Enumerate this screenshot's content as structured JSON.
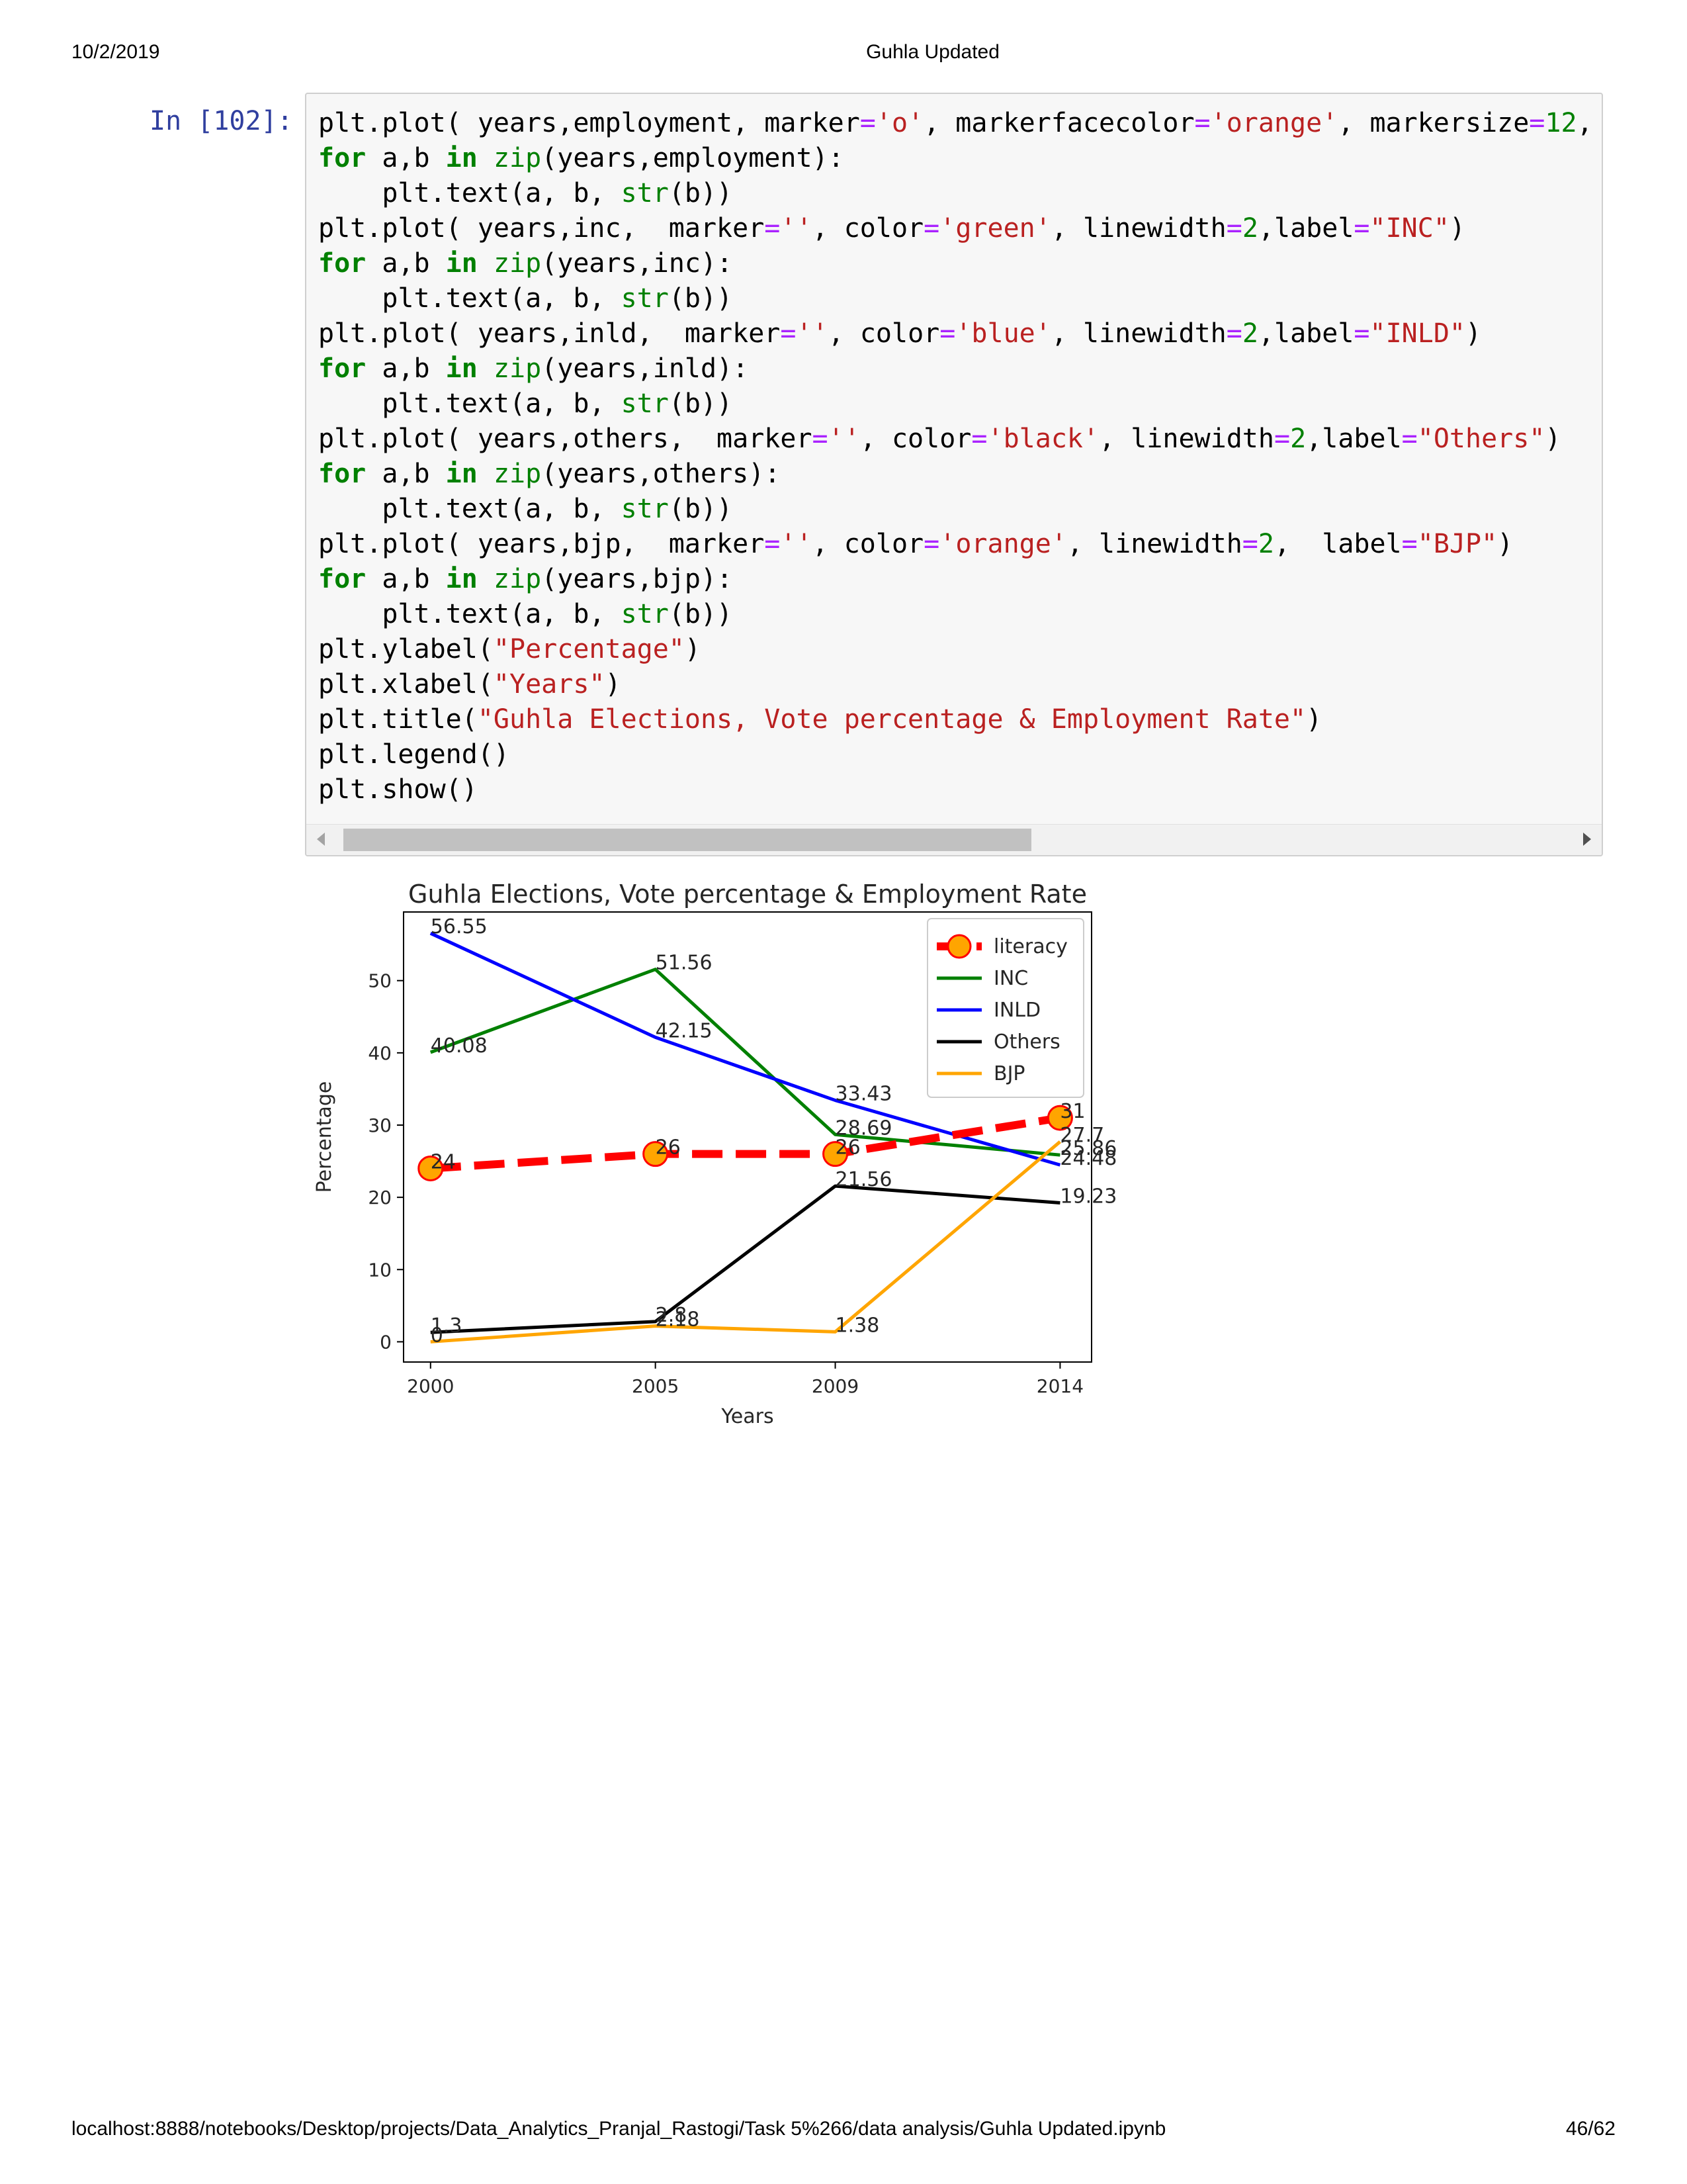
{
  "page": {
    "date": "10/2/2019",
    "title": "Guhla Updated",
    "url": "localhost:8888/notebooks/Desktop/projects/Data_Analytics_Pranjal_Rastogi/Task 5%266/data analysis/Guhla Updated.ipynb",
    "page_number": "46/62"
  },
  "cell": {
    "prompt": "In [102]:",
    "lines": [
      [
        [
          "plt.plot( years,employment, marker",
          ""
        ],
        [
          "=",
          "op"
        ],
        [
          "'o'",
          "st"
        ],
        [
          ", markerfacecolor",
          ""
        ],
        [
          "=",
          "op"
        ],
        [
          "'orange'",
          "st"
        ],
        [
          ", markersize",
          ""
        ],
        [
          "=",
          "op"
        ],
        [
          "12",
          "nm"
        ],
        [
          ",",
          ""
        ]
      ],
      [
        [
          "for",
          "kw"
        ],
        [
          " a,b ",
          ""
        ],
        [
          "in",
          "kw"
        ],
        [
          " ",
          ""
        ],
        [
          "zip",
          "bi"
        ],
        [
          "(years,employment):",
          ""
        ]
      ],
      [
        [
          "    plt.text(a, b, ",
          ""
        ],
        [
          "str",
          "bi"
        ],
        [
          "(b))",
          ""
        ]
      ],
      [
        [
          "plt.plot( years,inc,  marker",
          ""
        ],
        [
          "=",
          "op"
        ],
        [
          "''",
          "st"
        ],
        [
          ", color",
          ""
        ],
        [
          "=",
          "op"
        ],
        [
          "'green'",
          "st"
        ],
        [
          ", linewidth",
          ""
        ],
        [
          "=",
          "op"
        ],
        [
          "2",
          "nm"
        ],
        [
          ",label",
          ""
        ],
        [
          "=",
          "op"
        ],
        [
          "\"INC\"",
          "st"
        ],
        [
          ")",
          ""
        ]
      ],
      [
        [
          "for",
          "kw"
        ],
        [
          " a,b ",
          ""
        ],
        [
          "in",
          "kw"
        ],
        [
          " ",
          ""
        ],
        [
          "zip",
          "bi"
        ],
        [
          "(years,inc):",
          ""
        ]
      ],
      [
        [
          "    plt.text(a, b, ",
          ""
        ],
        [
          "str",
          "bi"
        ],
        [
          "(b))",
          ""
        ]
      ],
      [
        [
          "plt.plot( years,inld,  marker",
          ""
        ],
        [
          "=",
          "op"
        ],
        [
          "''",
          "st"
        ],
        [
          ", color",
          ""
        ],
        [
          "=",
          "op"
        ],
        [
          "'blue'",
          "st"
        ],
        [
          ", linewidth",
          ""
        ],
        [
          "=",
          "op"
        ],
        [
          "2",
          "nm"
        ],
        [
          ",label",
          ""
        ],
        [
          "=",
          "op"
        ],
        [
          "\"INLD\"",
          "st"
        ],
        [
          ")",
          ""
        ]
      ],
      [
        [
          "for",
          "kw"
        ],
        [
          " a,b ",
          ""
        ],
        [
          "in",
          "kw"
        ],
        [
          " ",
          ""
        ],
        [
          "zip",
          "bi"
        ],
        [
          "(years,inld):",
          ""
        ]
      ],
      [
        [
          "    plt.text(a, b, ",
          ""
        ],
        [
          "str",
          "bi"
        ],
        [
          "(b))",
          ""
        ]
      ],
      [
        [
          "plt.plot( years,others,  marker",
          ""
        ],
        [
          "=",
          "op"
        ],
        [
          "''",
          "st"
        ],
        [
          ", color",
          ""
        ],
        [
          "=",
          "op"
        ],
        [
          "'black'",
          "st"
        ],
        [
          ", linewidth",
          ""
        ],
        [
          "=",
          "op"
        ],
        [
          "2",
          "nm"
        ],
        [
          ",label",
          ""
        ],
        [
          "=",
          "op"
        ],
        [
          "\"Others\"",
          "st"
        ],
        [
          ")",
          ""
        ]
      ],
      [
        [
          "for",
          "kw"
        ],
        [
          " a,b ",
          ""
        ],
        [
          "in",
          "kw"
        ],
        [
          " ",
          ""
        ],
        [
          "zip",
          "bi"
        ],
        [
          "(years,others):",
          ""
        ]
      ],
      [
        [
          "    plt.text(a, b, ",
          ""
        ],
        [
          "str",
          "bi"
        ],
        [
          "(b))",
          ""
        ]
      ],
      [
        [
          "plt.plot( years,bjp,  marker",
          ""
        ],
        [
          "=",
          "op"
        ],
        [
          "''",
          "st"
        ],
        [
          ", color",
          ""
        ],
        [
          "=",
          "op"
        ],
        [
          "'orange'",
          "st"
        ],
        [
          ", linewidth",
          ""
        ],
        [
          "=",
          "op"
        ],
        [
          "2",
          "nm"
        ],
        [
          ",  label",
          ""
        ],
        [
          "=",
          "op"
        ],
        [
          "\"BJP\"",
          "st"
        ],
        [
          ")",
          ""
        ]
      ],
      [
        [
          "for",
          "kw"
        ],
        [
          " a,b ",
          ""
        ],
        [
          "in",
          "kw"
        ],
        [
          " ",
          ""
        ],
        [
          "zip",
          "bi"
        ],
        [
          "(years,bjp):",
          ""
        ]
      ],
      [
        [
          "    plt.text(a, b, ",
          ""
        ],
        [
          "str",
          "bi"
        ],
        [
          "(b))",
          ""
        ]
      ],
      [
        [
          "plt.ylabel(",
          ""
        ],
        [
          "\"Percentage\"",
          "st"
        ],
        [
          ")",
          ""
        ]
      ],
      [
        [
          "plt.xlabel(",
          ""
        ],
        [
          "\"Years\"",
          "st"
        ],
        [
          ")",
          ""
        ]
      ],
      [
        [
          "plt.title(",
          ""
        ],
        [
          "\"Guhla Elections, Vote percentage & Employment Rate\"",
          "st"
        ],
        [
          ")",
          ""
        ]
      ],
      [
        [
          "plt.legend()",
          ""
        ]
      ],
      [
        [
          "plt.show()",
          ""
        ]
      ]
    ]
  },
  "chart_data": {
    "type": "line",
    "title": "Guhla Elections, Vote percentage & Employment Rate",
    "xlabel": "Years",
    "ylabel": "Percentage",
    "x": [
      2000,
      2005,
      2009,
      2014
    ],
    "x_tick_labels": [
      "2000",
      "2005",
      "2009",
      "2014"
    ],
    "y_ticks": [
      0,
      10,
      20,
      30,
      40,
      50
    ],
    "y_tick_labels": [
      "0",
      "10",
      "20",
      "30",
      "40",
      "50"
    ],
    "xlim": [
      1999.4,
      2014.7
    ],
    "ylim": [
      -2.8,
      59.5
    ],
    "legend_position": "upper right",
    "series": [
      {
        "name": "literacy",
        "values": [
          24,
          26,
          26,
          31
        ],
        "labels": [
          "24",
          "26",
          "26",
          "31"
        ],
        "color": "#ff0000",
        "marker_color": "#ffa500",
        "style": "dashed"
      },
      {
        "name": "INC",
        "values": [
          40.08,
          51.56,
          28.69,
          25.86
        ],
        "labels": [
          "40.08",
          "51.56",
          "28.69",
          "25.86"
        ],
        "color": "#008000",
        "style": "solid"
      },
      {
        "name": "INLD",
        "values": [
          56.55,
          42.15,
          33.43,
          24.48
        ],
        "labels": [
          "56.55",
          "42.15",
          "33.43",
          "24.48"
        ],
        "color": "#0000ff",
        "style": "solid"
      },
      {
        "name": "Others",
        "values": [
          1.3,
          2.8,
          21.56,
          19.23
        ],
        "labels": [
          "1.3",
          "2.8",
          "21.56",
          "19.23"
        ],
        "color": "#000000",
        "style": "solid"
      },
      {
        "name": "BJP",
        "values": [
          0,
          2.18,
          1.38,
          27.7
        ],
        "labels": [
          "0",
          "2.18",
          "1.38",
          "27.7"
        ],
        "color": "#ffa500",
        "style": "solid"
      }
    ]
  }
}
